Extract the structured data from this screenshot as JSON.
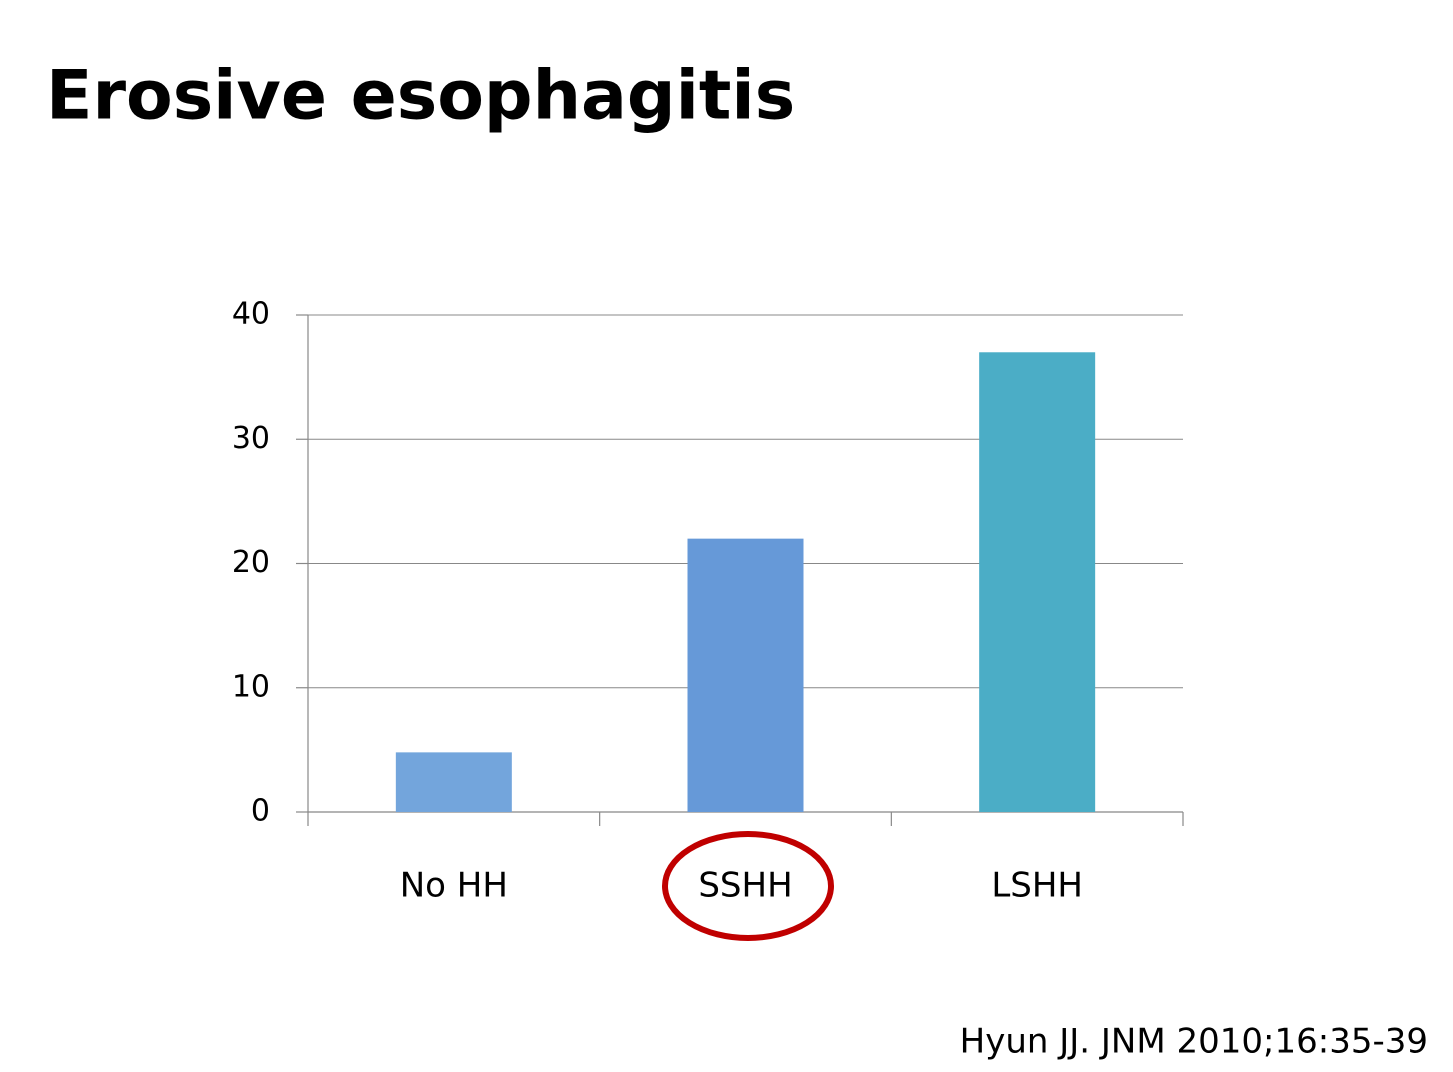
{
  "chart_data": {
    "type": "bar",
    "title": "Erosive esophagitis",
    "categories": [
      "No HH",
      "SSHH",
      "LSHH"
    ],
    "values": [
      4.8,
      22,
      37
    ],
    "colors": [
      "#73a5dc",
      "#6699d8",
      "#4badc6"
    ],
    "ylim": [
      0,
      40
    ],
    "yticks": [
      0,
      10,
      20,
      30,
      40
    ],
    "grid": true,
    "source": "Hyun JJ. JNM 2010;16:35-39"
  }
}
